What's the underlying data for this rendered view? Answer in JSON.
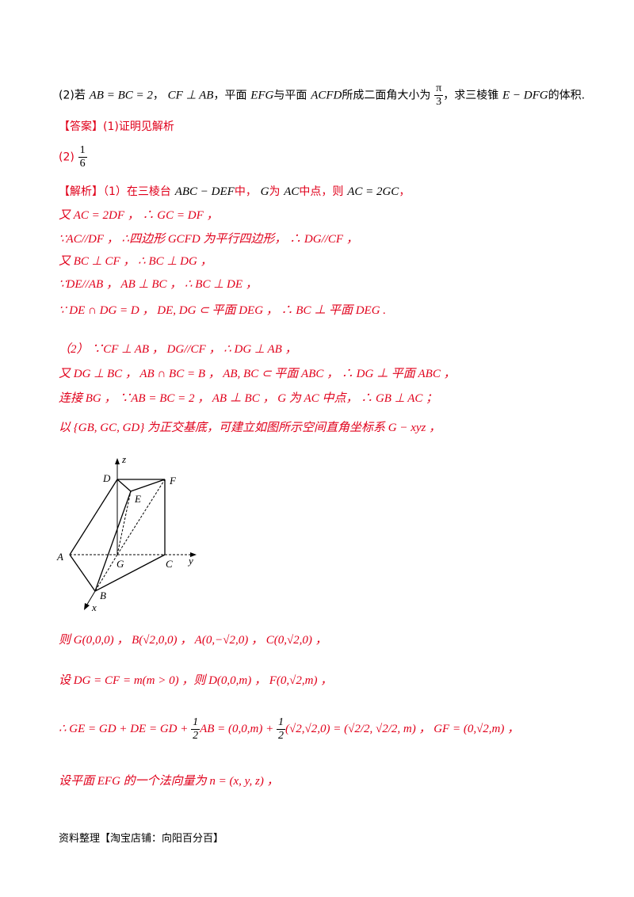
{
  "part2_question": {
    "prefix": "(2)若",
    "math1": "AB = BC = 2",
    "sep1": "，",
    "math2": "CF ⊥ AB",
    "sep2": "，平面",
    "math3": "EFG",
    "text3": "与平面",
    "math4": "ACFD",
    "text4": "所成二面角大小为",
    "frac_num": "π",
    "frac_den": "3",
    "text5": "，求三棱锥",
    "math5": "E − DFG",
    "text6": "的体积."
  },
  "answer": {
    "label": "【答案】",
    "part1": "(1)证明见解析",
    "part2_label": "(2)",
    "frac_num": "1",
    "frac_den": "6"
  },
  "analysis": {
    "lines": [
      {
        "red_prefix": "【解析】（1）在三棱台",
        "m1": "ABC − DEF",
        "t1": "中，",
        "m2": "G",
        "t2": "为",
        "m3": "AC",
        "t3": "中点，则",
        "m4": "AC = 2GC",
        "t4": "，"
      },
      {
        "text": "又 AC = 2DF ， ∴ GC = DF ，"
      },
      {
        "text": "∵AC//DF ， ∴四边形 GCFD 为平行四边形， ∴ DG//CF ，"
      },
      {
        "text": "又 BC ⊥ CF ， ∴ BC ⊥ DG ，"
      },
      {
        "text": "∵DE//AB ， AB ⊥ BC ， ∴ BC ⊥ DE ，"
      },
      {
        "text": "∵ DE ∩ DG = D ，  DE, DG ⊂ 平面 DEG ， ∴ BC ⊥ 平面 DEG ."
      },
      {
        "text": "（2） ∵CF ⊥ AB ， DG//CF ， ∴ DG ⊥ AB ，"
      },
      {
        "text": "又 DG ⊥ BC ， AB ∩ BC = B ， AB, BC ⊂ 平面 ABC ， ∴ DG ⊥ 平面 ABC ，"
      },
      {
        "text": "连接 BG ， ∵AB = BC = 2 ， AB ⊥ BC ， G 为 AC 中点， ∴ GB ⊥ AC ；"
      },
      {
        "text": "以 {GB, GC, GD} 为正交基底，可建立如图所示空间直角坐标系 G − xyz ，"
      }
    ]
  },
  "figure": {
    "labels": {
      "z": "z",
      "D": "D",
      "F": "F",
      "E": "E",
      "A": "A",
      "G": "G",
      "C": "C",
      "y": "y",
      "B": "B",
      "x": "x"
    }
  },
  "coords": {
    "l1": "则 G(0,0,0) ， B(√2,0,0) ， A(0,−√2,0) ， C(0,√2,0) ，",
    "l2": "设 DG = CF = m(m > 0) ，则 D(0,0,m) ， F(0,√2,m) ，",
    "l3a": "∴ GE = GD + DE = GD + ",
    "l3_frac_num": "1",
    "l3_frac_den": "2",
    "l3b": "AB = (0,0,m) + ",
    "l3c": "(√2,√2,0) = (√2/2, √2/2, m) ，  GF = (0,√2,m) ，",
    "l4": "设平面 EFG 的一个法向量为 n = (x, y, z) ，"
  },
  "footer": "资料整理【淘宝店铺：向阳百分百】"
}
